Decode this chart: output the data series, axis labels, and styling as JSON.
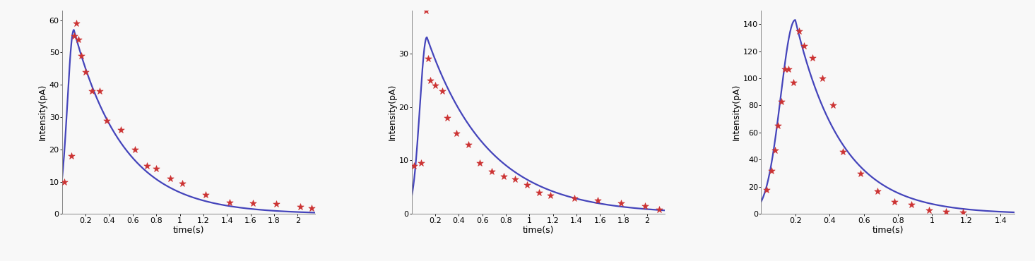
{
  "subplots": [
    {
      "ylabel": "Intensity(pA)",
      "xlabel": "time(s)",
      "xlim": [
        0.0,
        2.15
      ],
      "ylim": [
        0,
        63
      ],
      "xticks": [
        0.2,
        0.4,
        0.6,
        0.8,
        1.0,
        1.2,
        1.4,
        1.6,
        1.8,
        2.0
      ],
      "yticks": [
        0,
        10,
        20,
        30,
        40,
        50,
        60
      ],
      "curve_params": {
        "A": 57.0,
        "t_peak": 0.1,
        "tau_rise": 0.055,
        "tau_fall": 0.42
      },
      "scatter_x": [
        0.02,
        0.08,
        0.1,
        0.12,
        0.14,
        0.16,
        0.2,
        0.25,
        0.32,
        0.38,
        0.5,
        0.62,
        0.72,
        0.8,
        0.92,
        1.02,
        1.22,
        1.42,
        1.62,
        1.82,
        2.02,
        2.12
      ],
      "scatter_y": [
        10,
        18,
        55,
        59,
        54,
        49,
        44,
        38,
        38,
        29,
        26,
        20,
        15,
        14,
        11,
        9.5,
        6,
        3.5,
        3.3,
        3.2,
        2.2,
        1.8
      ]
    },
    {
      "ylabel": "Intensity(pA)",
      "xlabel": "time(s)",
      "xlim": [
        0.0,
        2.15
      ],
      "ylim": [
        0,
        38
      ],
      "xticks": [
        0.2,
        0.4,
        0.6,
        0.8,
        1.0,
        1.2,
        1.4,
        1.6,
        1.8,
        2.0
      ],
      "yticks": [
        0,
        10,
        20,
        30
      ],
      "curve_params": {
        "A": 33.0,
        "t_peak": 0.13,
        "tau_rise": 0.06,
        "tau_fall": 0.52
      },
      "scatter_x": [
        0.02,
        0.08,
        0.12,
        0.14,
        0.16,
        0.2,
        0.26,
        0.3,
        0.38,
        0.48,
        0.58,
        0.68,
        0.78,
        0.88,
        0.98,
        1.08,
        1.18,
        1.38,
        1.58,
        1.78,
        1.98,
        2.1
      ],
      "scatter_y": [
        9.0,
        9.5,
        38,
        29,
        25,
        24,
        23,
        18,
        15,
        13,
        9.5,
        8.0,
        7.0,
        6.5,
        5.5,
        4.0,
        3.5,
        3.0,
        2.5,
        2.0,
        1.5,
        0.8
      ]
    },
    {
      "ylabel": "Intensity(pA)",
      "xlabel": "time(s)",
      "xlim": [
        0.0,
        1.48
      ],
      "ylim": [
        0,
        150
      ],
      "xticks": [
        0.2,
        0.4,
        0.6,
        0.8,
        1.0,
        1.2,
        1.4
      ],
      "yticks": [
        0,
        20,
        40,
        60,
        80,
        100,
        120,
        140
      ],
      "curve_params": {
        "A": 143.0,
        "t_peak": 0.2,
        "tau_rise": 0.085,
        "tau_fall": 0.27
      },
      "scatter_x": [
        0.03,
        0.06,
        0.08,
        0.1,
        0.12,
        0.14,
        0.16,
        0.19,
        0.22,
        0.25,
        0.3,
        0.36,
        0.42,
        0.48,
        0.58,
        0.68,
        0.78,
        0.88,
        0.98,
        1.08,
        1.18
      ],
      "scatter_y": [
        18,
        32,
        47,
        65,
        83,
        107,
        107,
        97,
        135,
        124,
        115,
        100,
        80,
        46,
        30,
        17,
        9,
        7,
        3,
        2,
        1
      ]
    }
  ],
  "line_color": "#4444bb",
  "scatter_color": "#cc3333",
  "bg_color": "#f8f8f8",
  "line_width": 1.6,
  "marker": "*",
  "marker_size": 7,
  "fig_width": 14.65,
  "fig_height": 3.7,
  "fig_dpi": 100
}
